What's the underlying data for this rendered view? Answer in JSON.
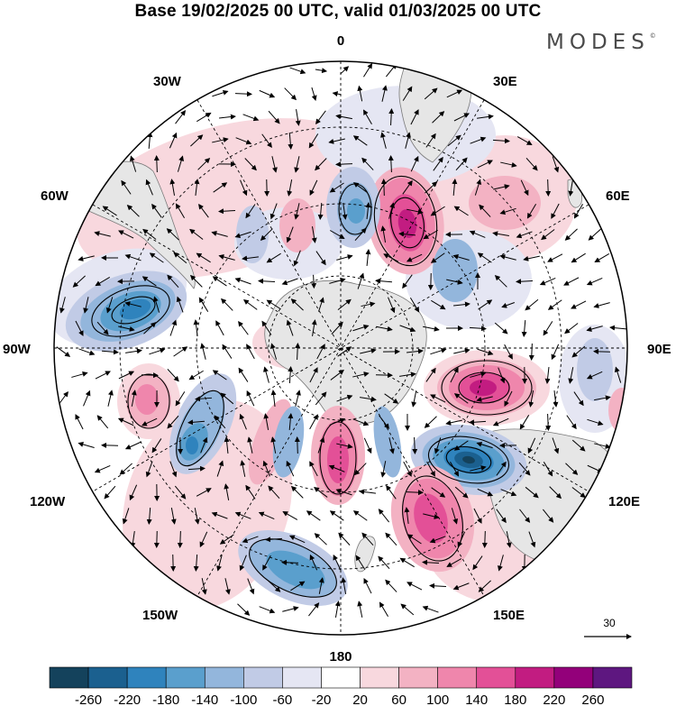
{
  "title": "Base 19/02/2025 00 UTC, valid 01/03/2025 00 UTC",
  "brand": {
    "text": "MODES",
    "mark": "©"
  },
  "map": {
    "projection": "south-polar-stereographic",
    "longitude_labels": {
      "top": "0",
      "bottom": "180",
      "left": "90W",
      "right": "90E",
      "upper_left": "30W",
      "upper_right": "30E",
      "left_upper": "60W",
      "right_upper": "60E",
      "left_lower": "120W",
      "right_lower": "120E",
      "lower_left": "150W",
      "lower_right": "150E"
    },
    "vector_reference": "30",
    "anomaly_centers": [
      {
        "name": "positive-center-60E-inner",
        "sign": "positive",
        "peak": 220
      },
      {
        "name": "negative-center-20E-inner",
        "sign": "negative",
        "peak": -140
      },
      {
        "name": "negative-center-70W",
        "sign": "negative",
        "peak": -180
      },
      {
        "name": "positive-center-100E",
        "sign": "positive",
        "peak": 220
      },
      {
        "name": "negative-center-110E",
        "sign": "negative",
        "peak": -260
      },
      {
        "name": "positive-center-140E",
        "sign": "positive",
        "peak": 180
      },
      {
        "name": "positive-center-175E",
        "sign": "positive",
        "peak": 180
      },
      {
        "name": "negative-center-160W",
        "sign": "negative",
        "peak": -140
      },
      {
        "name": "negative-center-120W",
        "sign": "negative",
        "peak": -180
      },
      {
        "name": "positive-center-100W",
        "sign": "positive",
        "peak": 140
      }
    ]
  },
  "colorbar": {
    "labels": [
      "-260",
      "-220",
      "-180",
      "-140",
      "-100",
      "-60",
      "-20",
      "20",
      "60",
      "100",
      "140",
      "180",
      "220",
      "260"
    ],
    "colors": [
      "#14425c",
      "#1b608f",
      "#2f83bd",
      "#5a9fcd",
      "#93b6dc",
      "#c1cbe6",
      "#e5e6f3",
      "#ffffff",
      "#f8d8de",
      "#f3b2c3",
      "#ef86ac",
      "#e35097",
      "#c21c81",
      "#93007a",
      "#5e1780"
    ]
  }
}
